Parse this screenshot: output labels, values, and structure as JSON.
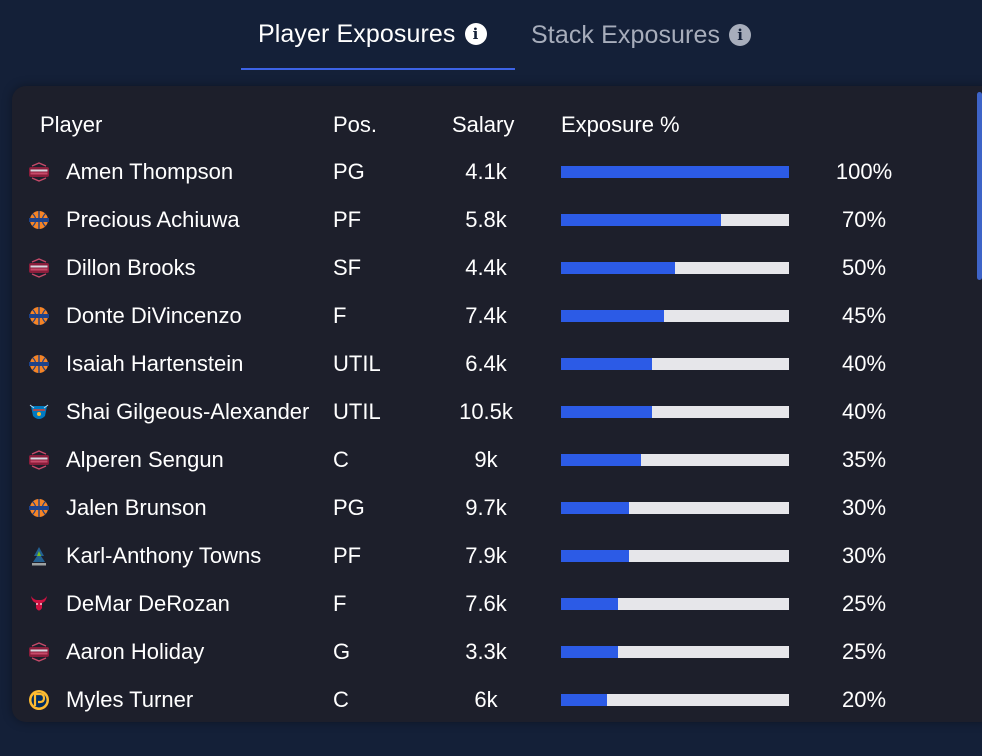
{
  "tabs": [
    {
      "label": "Player Exposures",
      "active": true
    },
    {
      "label": "Stack Exposures",
      "active": false
    }
  ],
  "table": {
    "headers": {
      "player": "Player",
      "pos": "Pos.",
      "salary": "Salary",
      "exposure": "Exposure %"
    },
    "rows": [
      {
        "name": "Amen Thompson",
        "pos": "PG",
        "salary": "4.1k",
        "exposure_label": "100%",
        "exposure": 100,
        "team_logo": "rockets-logo"
      },
      {
        "name": "Precious Achiuwa",
        "pos": "PF",
        "salary": "5.8k",
        "exposure_label": "70%",
        "exposure": 70,
        "team_logo": "knicks-logo"
      },
      {
        "name": "Dillon Brooks",
        "pos": "SF",
        "salary": "4.4k",
        "exposure_label": "50%",
        "exposure": 50,
        "team_logo": "rockets-logo"
      },
      {
        "name": "Donte DiVincenzo",
        "pos": "F",
        "salary": "7.4k",
        "exposure_label": "45%",
        "exposure": 45,
        "team_logo": "knicks-logo"
      },
      {
        "name": "Isaiah Hartenstein",
        "pos": "UTIL",
        "salary": "6.4k",
        "exposure_label": "40%",
        "exposure": 40,
        "team_logo": "knicks-logo"
      },
      {
        "name": "Shai Gilgeous-Alexander",
        "pos": "UTIL",
        "salary": "10.5k",
        "exposure_label": "40%",
        "exposure": 40,
        "team_logo": "thunder-logo"
      },
      {
        "name": "Alperen Sengun",
        "pos": "C",
        "salary": "9k",
        "exposure_label": "35%",
        "exposure": 35,
        "team_logo": "rockets-logo"
      },
      {
        "name": "Jalen Brunson",
        "pos": "PG",
        "salary": "9.7k",
        "exposure_label": "30%",
        "exposure": 30,
        "team_logo": "knicks-logo"
      },
      {
        "name": "Karl-Anthony Towns",
        "pos": "PF",
        "salary": "7.9k",
        "exposure_label": "30%",
        "exposure": 30,
        "team_logo": "timberwolves-logo"
      },
      {
        "name": "DeMar DeRozan",
        "pos": "F",
        "salary": "7.6k",
        "exposure_label": "25%",
        "exposure": 25,
        "team_logo": "bulls-logo"
      },
      {
        "name": "Aaron Holiday",
        "pos": "G",
        "salary": "3.3k",
        "exposure_label": "25%",
        "exposure": 25,
        "team_logo": "rockets-logo"
      },
      {
        "name": "Myles Turner",
        "pos": "C",
        "salary": "6k",
        "exposure_label": "20%",
        "exposure": 20,
        "team_logo": "pacers-logo"
      }
    ]
  },
  "colors": {
    "background": "#142038",
    "panel": "#1d1f2b",
    "accent": "#2c5be6",
    "bar_track": "#e6e6ea",
    "inactive_tab": "#a7adbb"
  }
}
